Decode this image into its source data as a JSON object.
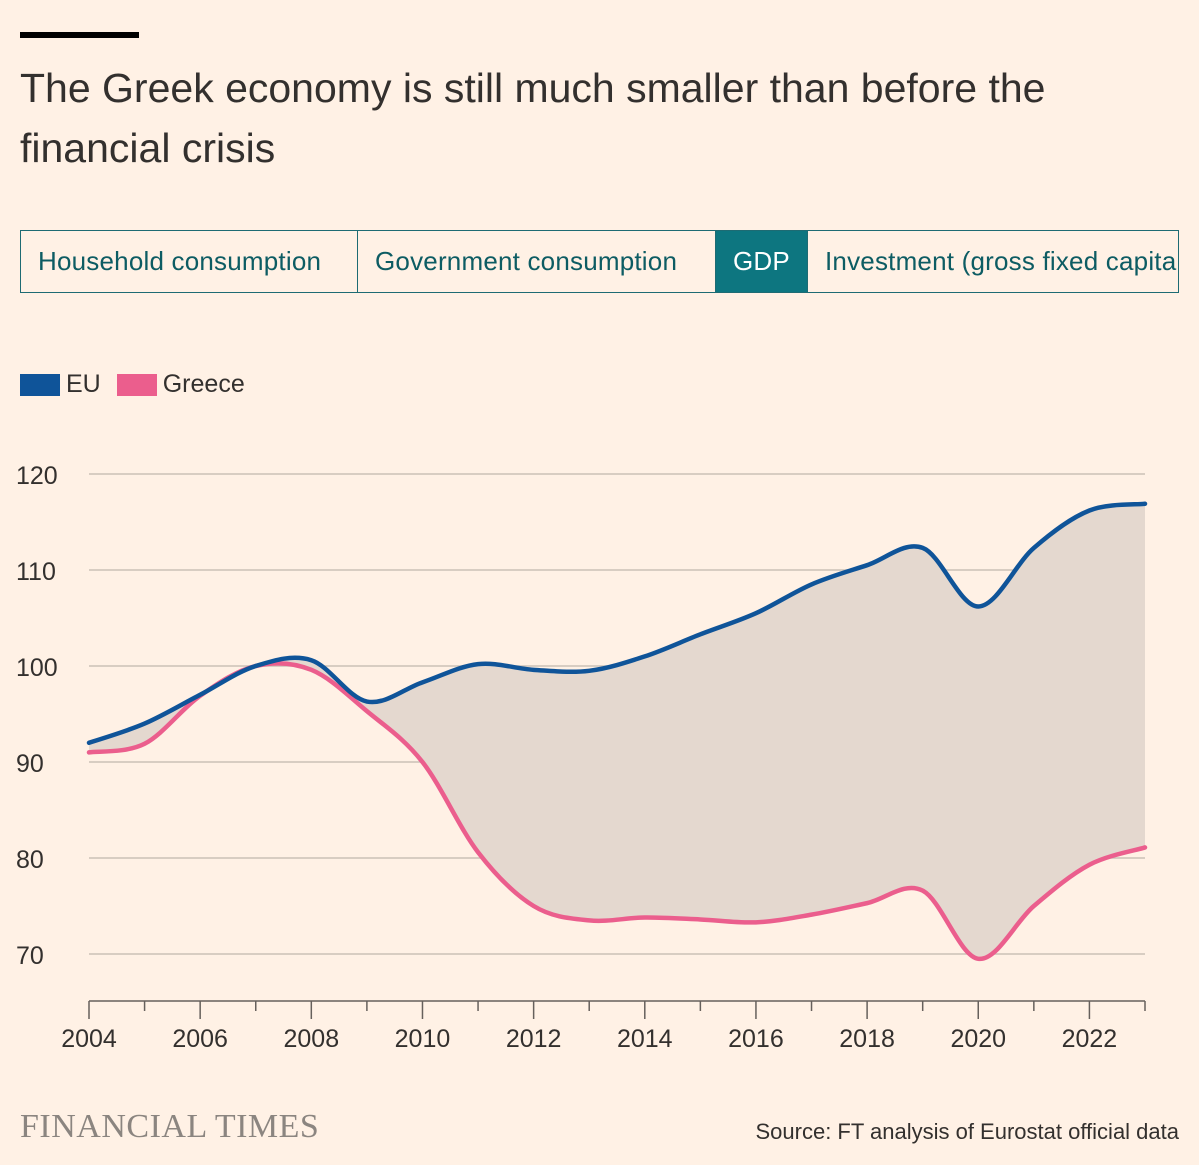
{
  "title": "The Greek economy is still much smaller than before the financial crisis",
  "tabs": [
    {
      "label": "Household consumption",
      "active": false
    },
    {
      "label": "Government consumption",
      "active": false
    },
    {
      "label": "GDP",
      "active": true
    },
    {
      "label": "Investment (gross fixed capital formation)",
      "active": false
    }
  ],
  "legend": [
    {
      "label": "EU",
      "color": "#0f5499"
    },
    {
      "label": "Greece",
      "color": "#eb5e8d"
    }
  ],
  "colors": {
    "eu": "#0f5499",
    "greece": "#eb5e8d",
    "gap_fill": "#e4d8cf",
    "grid": "#ccc1b7",
    "tab_active": "#0d7680"
  },
  "chart_data": {
    "type": "line",
    "title": "The Greek economy is still much smaller than before the financial crisis",
    "xlabel": "",
    "ylabel": "",
    "x": [
      2004,
      2005,
      2006,
      2007,
      2008,
      2009,
      2010,
      2011,
      2012,
      2013,
      2014,
      2015,
      2016,
      2017,
      2018,
      2019,
      2020,
      2021,
      2022,
      2023
    ],
    "series": [
      {
        "name": "EU",
        "values": [
          92.0,
          94.0,
          97.0,
          100.0,
          100.6,
          96.3,
          98.3,
          100.2,
          99.6,
          99.5,
          101.0,
          103.3,
          105.5,
          108.5,
          110.5,
          112.3,
          106.2,
          112.3,
          116.2,
          116.9
        ]
      },
      {
        "name": "Greece",
        "values": [
          91.0,
          91.9,
          96.9,
          100.0,
          99.6,
          95.3,
          90.0,
          80.6,
          75.0,
          73.5,
          73.8,
          73.6,
          73.3,
          74.1,
          75.3,
          76.6,
          69.5,
          75.0,
          79.3,
          81.1
        ]
      }
    ],
    "ylim": [
      65,
      120
    ],
    "xlim": [
      2004,
      2023
    ],
    "yticks": [
      70,
      80,
      90,
      100,
      110,
      120
    ],
    "xticks": [
      2004,
      2006,
      2008,
      2010,
      2012,
      2014,
      2016,
      2018,
      2020,
      2022
    ],
    "grid": true,
    "legend_position": "top-left",
    "gap_shaded": true
  },
  "footer": {
    "logo": "FINANCIAL TIMES",
    "source": "Source: FT analysis of Eurostat official data"
  }
}
